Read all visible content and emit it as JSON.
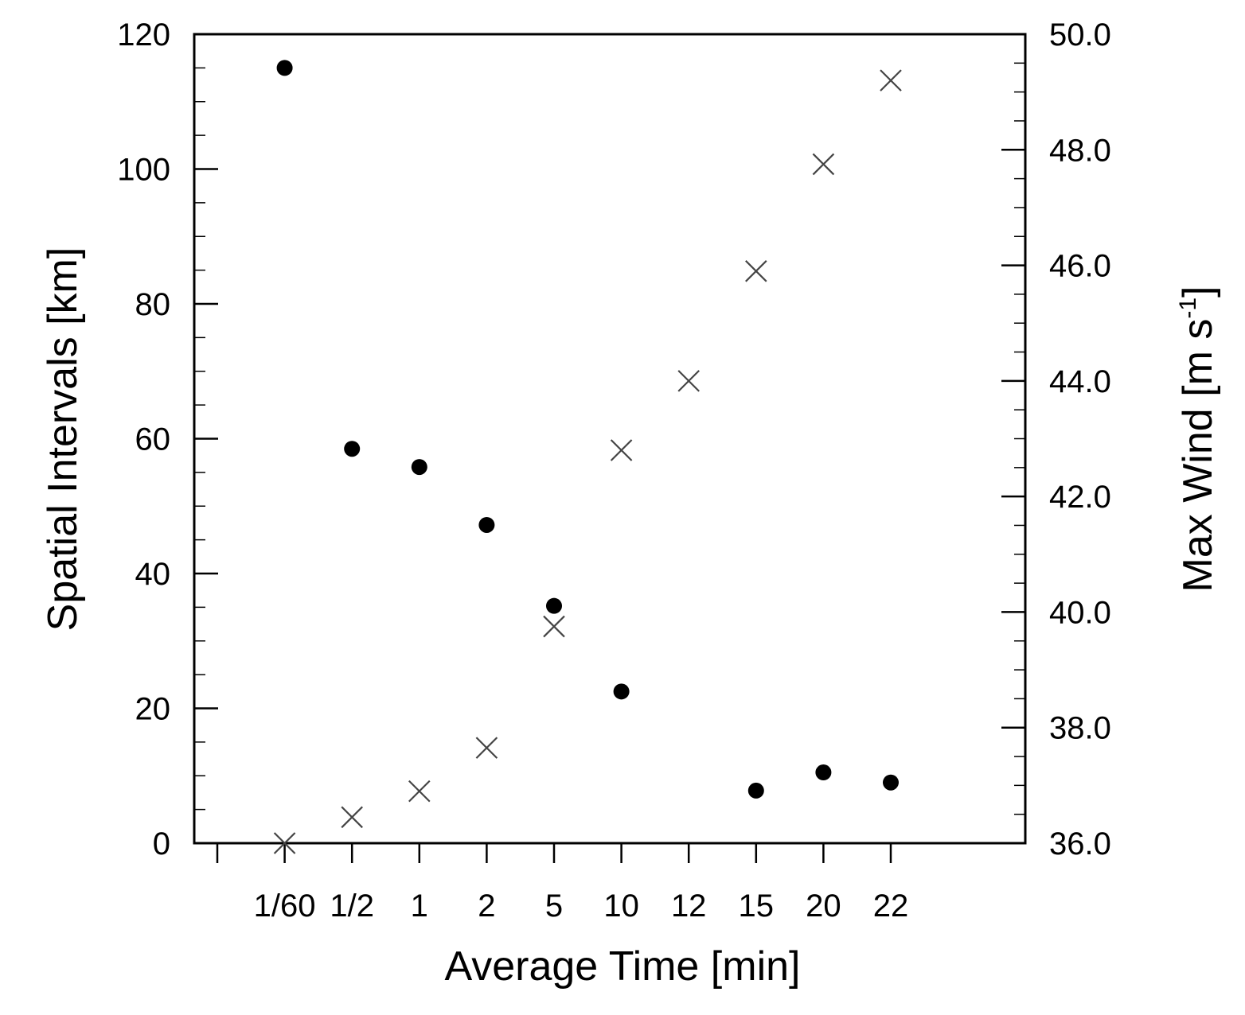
{
  "chart_data": {
    "type": "scatter",
    "title": "",
    "xlabel": "Average Time [min]",
    "ylabel_left": "Spatial Intervals [km]",
    "ylabel_right": "Max Wind [m s",
    "ylabel_right_superscript": "-1",
    "ylabel_right_suffix": "]",
    "categories": [
      "1/60",
      "1/2",
      "1",
      "2",
      "5",
      "10",
      "12",
      "15",
      "20",
      "22"
    ],
    "ylim_left": [
      0,
      120
    ],
    "yticks_left": [
      "0",
      "20",
      "40",
      "60",
      "80",
      "100",
      "120"
    ],
    "ylim_right": [
      36.0,
      50.0
    ],
    "yticks_right": [
      "36.0",
      "38.0",
      "40.0",
      "42.0",
      "44.0",
      "46.0",
      "48.0",
      "50.0"
    ],
    "grid": false,
    "series": [
      {
        "name": "Spatial Intervals",
        "axis": "left",
        "marker": "filled-circle",
        "x": [
          "1/60",
          "1/2",
          "1",
          "2",
          "5",
          "10",
          "15",
          "20",
          "22"
        ],
        "values": [
          115,
          58.5,
          55.8,
          47.2,
          35.2,
          22.5,
          7.8,
          10.5,
          9.0
        ]
      },
      {
        "name": "Max Wind",
        "axis": "right",
        "marker": "cross",
        "x": [
          "1/60",
          "1/2",
          "1",
          "2",
          "5",
          "10",
          "12",
          "15",
          "20",
          "22"
        ],
        "values": [
          36.0,
          36.45,
          36.9,
          37.65,
          39.75,
          42.8,
          44.0,
          45.9,
          47.75,
          49.2
        ]
      }
    ]
  }
}
